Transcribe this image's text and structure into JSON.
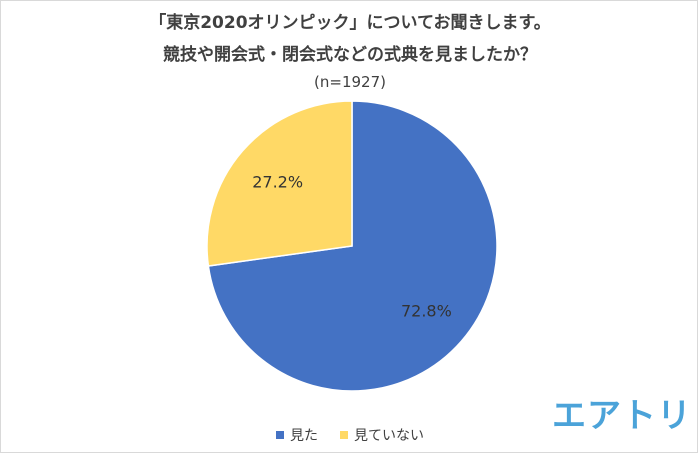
{
  "header": {
    "title_line1": "「東京2020オリンピック」についてお聞きします。",
    "title_line2": "競技や開会式・閉会式などの式典を見ましたか？",
    "subtitle": "(n=1927)"
  },
  "brand": {
    "logo_text": "エアトリ",
    "color": "#4ba3d9"
  },
  "chart_data": {
    "type": "pie",
    "title": "「東京2020オリンピック」についてお聞きします。競技や開会式・閉会式などの式典を見ましたか？",
    "subtitle": "(n=1927)",
    "categories": [
      "見た",
      "見ていない"
    ],
    "values": [
      72.8,
      27.2
    ],
    "labels": [
      "72.8%",
      "27.2%"
    ],
    "colors": [
      "#4472c4",
      "#ffd966"
    ],
    "start_angle": "12 o'clock, clockwise",
    "legend_position": "bottom"
  }
}
